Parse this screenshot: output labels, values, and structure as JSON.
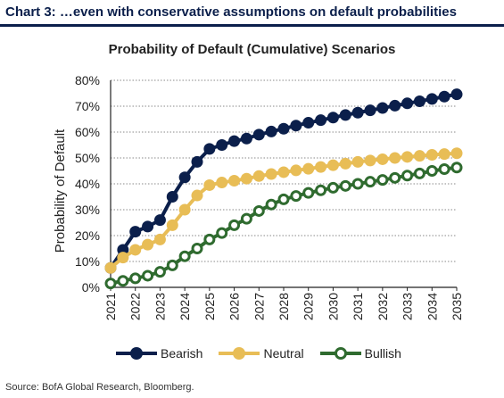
{
  "header": {
    "title": "Chart 3: …even with conservative assumptions on default probabilities"
  },
  "source": "Source: BofA Global Research, Bloomberg.",
  "chart_data": {
    "type": "line",
    "title": "Probability of Default (Cumulative) Scenarios",
    "xlabel": "",
    "ylabel": "Probability of Default",
    "x": [
      "2021",
      "2021.5",
      "2022",
      "2022.5",
      "2023",
      "2023.5",
      "2024",
      "2024.5",
      "2025",
      "2025.5",
      "2026",
      "2026.5",
      "2027",
      "2027.5",
      "2028",
      "2028.5",
      "2029",
      "2029.5",
      "2030",
      "2030.5",
      "2031",
      "2031.5",
      "2032",
      "2032.5",
      "2033",
      "2033.5",
      "2034",
      "2034.5",
      "2035"
    ],
    "tick_labels": [
      "2021",
      "2022",
      "2023",
      "2024",
      "2025",
      "2026",
      "2027",
      "2028",
      "2029",
      "2030",
      "2031",
      "2032",
      "2033",
      "2034",
      "2035"
    ],
    "yticks": [
      "0%",
      "10%",
      "20%",
      "30%",
      "40%",
      "50%",
      "60%",
      "70%",
      "80%"
    ],
    "ylim": [
      0,
      80
    ],
    "grid": true,
    "legend_position": "bottom",
    "series": [
      {
        "name": "Bearish",
        "color": "#0b1f4b",
        "marker": "filled",
        "values": [
          7.5,
          14.5,
          21.5,
          23.5,
          26,
          35,
          42.5,
          48.5,
          53.5,
          55,
          56.5,
          57.5,
          59,
          60.2,
          61.3,
          62.5,
          63.6,
          64.6,
          65.6,
          66.6,
          67.5,
          68.4,
          69.3,
          70.2,
          71.1,
          71.9,
          72.8,
          73.7,
          74.6
        ]
      },
      {
        "name": "Neutral",
        "color": "#e8bd56",
        "marker": "filled",
        "values": [
          7.5,
          11.5,
          14.5,
          16.5,
          18.5,
          24,
          30,
          35.5,
          39.5,
          40.5,
          41.2,
          42,
          43,
          43.8,
          44.5,
          45.2,
          45.8,
          46.5,
          47.2,
          47.8,
          48.5,
          49,
          49.5,
          50,
          50.4,
          50.8,
          51.2,
          51.5,
          51.8
        ]
      },
      {
        "name": "Bullish",
        "color": "#2f6b2f",
        "marker": "hollow",
        "values": [
          1.5,
          2.5,
          3.5,
          4.5,
          6,
          8.5,
          12,
          15,
          18.5,
          21,
          24,
          26.5,
          29.5,
          32,
          34,
          35.3,
          36.5,
          37.5,
          38.5,
          39.2,
          40,
          40.8,
          41.5,
          42.3,
          43.2,
          44,
          45,
          45.7,
          46.3
        ]
      }
    ]
  }
}
